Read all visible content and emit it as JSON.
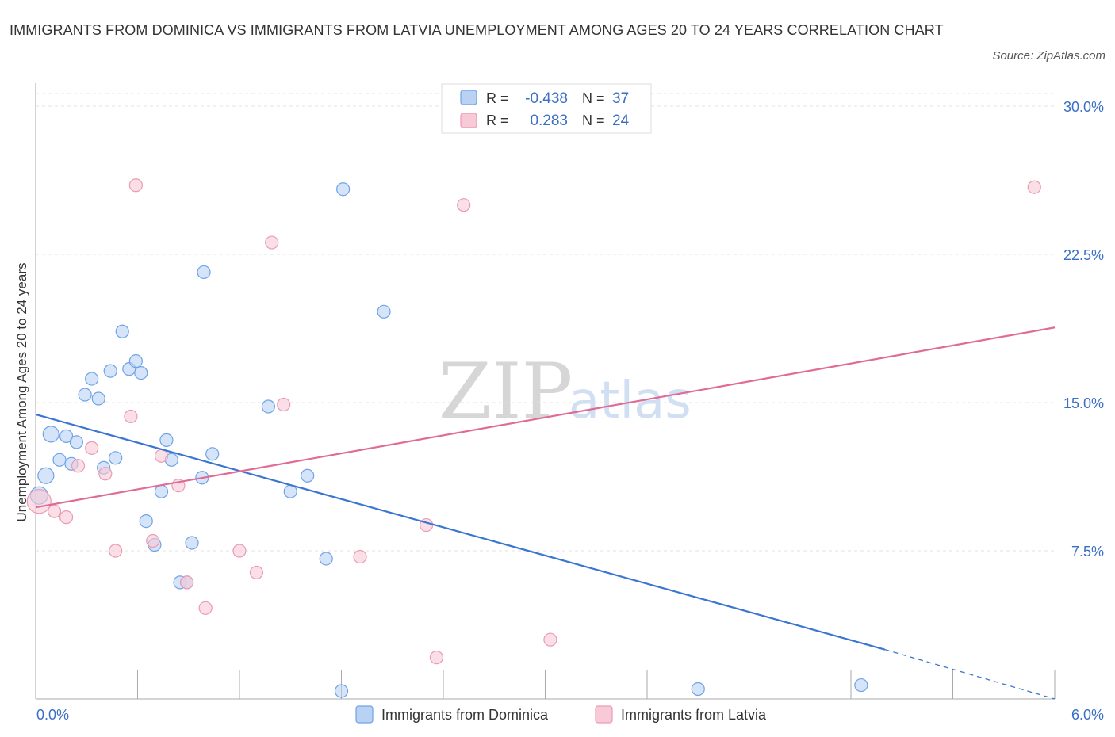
{
  "chart_data": {
    "type": "scatter",
    "title": "IMMIGRANTS FROM DOMINICA VS IMMIGRANTS FROM LATVIA UNEMPLOYMENT AMONG AGES 20 TO 24 YEARS CORRELATION CHART",
    "source": "Source: ZipAtlas.com",
    "xlabel": "",
    "ylabel": "Unemployment Among Ages 20 to 24 years",
    "xlim": [
      0.0,
      6.0
    ],
    "ylim": [
      0.0,
      30.0
    ],
    "x_tick_labels": [
      "0.0%",
      "6.0%"
    ],
    "y_ticks": [
      7.5,
      15.0,
      22.5,
      30.0
    ],
    "y_tick_labels": [
      "7.5%",
      "15.0%",
      "22.5%",
      "30.0%"
    ],
    "grid": true,
    "watermark": {
      "zip": "ZIP",
      "atlas": "atlas"
    },
    "legend_stats": [
      {
        "r_label": "R =",
        "r_value": "-0.438",
        "n_label": "N =",
        "n_value": "37"
      },
      {
        "r_label": "R =",
        "r_value": "0.283",
        "n_label": "N =",
        "n_value": "24"
      }
    ],
    "series": [
      {
        "name": "Immigrants from Dominica",
        "color": "#6fa3e6",
        "fill": "#b9d2f3",
        "trend_color": "#3a75d2",
        "trend": {
          "x0": 0.0,
          "y0": 14.4,
          "x1": 5.0,
          "y1": 2.5,
          "dash_to_x": 6.0,
          "dash_to_y": 0.0
        },
        "points": [
          {
            "x": 0.02,
            "y": 10.3,
            "r": 11
          },
          {
            "x": 0.06,
            "y": 11.3,
            "r": 10
          },
          {
            "x": 0.09,
            "y": 13.4,
            "r": 10
          },
          {
            "x": 0.14,
            "y": 12.1
          },
          {
            "x": 0.18,
            "y": 13.3
          },
          {
            "x": 0.21,
            "y": 11.9
          },
          {
            "x": 0.24,
            "y": 13.0
          },
          {
            "x": 0.29,
            "y": 15.4
          },
          {
            "x": 0.33,
            "y": 16.2
          },
          {
            "x": 0.37,
            "y": 15.2
          },
          {
            "x": 0.4,
            "y": 11.7
          },
          {
            "x": 0.44,
            "y": 16.6
          },
          {
            "x": 0.47,
            "y": 12.2
          },
          {
            "x": 0.51,
            "y": 18.6
          },
          {
            "x": 0.55,
            "y": 16.7
          },
          {
            "x": 0.59,
            "y": 17.1
          },
          {
            "x": 0.62,
            "y": 16.5
          },
          {
            "x": 0.65,
            "y": 9.0
          },
          {
            "x": 0.7,
            "y": 7.8
          },
          {
            "x": 0.74,
            "y": 10.5
          },
          {
            "x": 0.77,
            "y": 13.1
          },
          {
            "x": 0.8,
            "y": 12.1
          },
          {
            "x": 0.85,
            "y": 5.9
          },
          {
            "x": 0.89,
            "y": 5.9
          },
          {
            "x": 0.92,
            "y": 7.9
          },
          {
            "x": 0.98,
            "y": 11.2
          },
          {
            "x": 0.99,
            "y": 21.6
          },
          {
            "x": 1.04,
            "y": 12.4
          },
          {
            "x": 1.37,
            "y": 14.8
          },
          {
            "x": 1.5,
            "y": 10.5
          },
          {
            "x": 1.6,
            "y": 11.3
          },
          {
            "x": 1.71,
            "y": 7.1
          },
          {
            "x": 1.8,
            "y": 0.4
          },
          {
            "x": 1.81,
            "y": 25.8
          },
          {
            "x": 2.05,
            "y": 19.6
          },
          {
            "x": 3.9,
            "y": 0.5
          },
          {
            "x": 4.86,
            "y": 0.7
          }
        ]
      },
      {
        "name": "Immigrants from Latvia",
        "color": "#ec9ab4",
        "fill": "#f8c9d7",
        "trend_color": "#e06b95",
        "trend": {
          "x0": 0.0,
          "y0": 9.7,
          "x1": 6.0,
          "y1": 18.8
        },
        "points": [
          {
            "x": 0.02,
            "y": 10.0,
            "r": 15
          },
          {
            "x": 0.11,
            "y": 9.5
          },
          {
            "x": 0.18,
            "y": 9.2
          },
          {
            "x": 0.25,
            "y": 11.8
          },
          {
            "x": 0.33,
            "y": 12.7
          },
          {
            "x": 0.41,
            "y": 11.4
          },
          {
            "x": 0.47,
            "y": 7.5
          },
          {
            "x": 0.56,
            "y": 14.3
          },
          {
            "x": 0.59,
            "y": 26.0
          },
          {
            "x": 0.69,
            "y": 8.0
          },
          {
            "x": 0.74,
            "y": 12.3
          },
          {
            "x": 0.84,
            "y": 10.8
          },
          {
            "x": 0.89,
            "y": 5.9
          },
          {
            "x": 1.0,
            "y": 4.6
          },
          {
            "x": 1.2,
            "y": 7.5
          },
          {
            "x": 1.3,
            "y": 6.4
          },
          {
            "x": 1.39,
            "y": 23.1
          },
          {
            "x": 1.46,
            "y": 14.9
          },
          {
            "x": 1.91,
            "y": 7.2
          },
          {
            "x": 2.3,
            "y": 8.8
          },
          {
            "x": 2.36,
            "y": 2.1
          },
          {
            "x": 2.52,
            "y": 25.0
          },
          {
            "x": 3.03,
            "y": 3.0
          },
          {
            "x": 5.88,
            "y": 25.9
          }
        ]
      }
    ]
  }
}
